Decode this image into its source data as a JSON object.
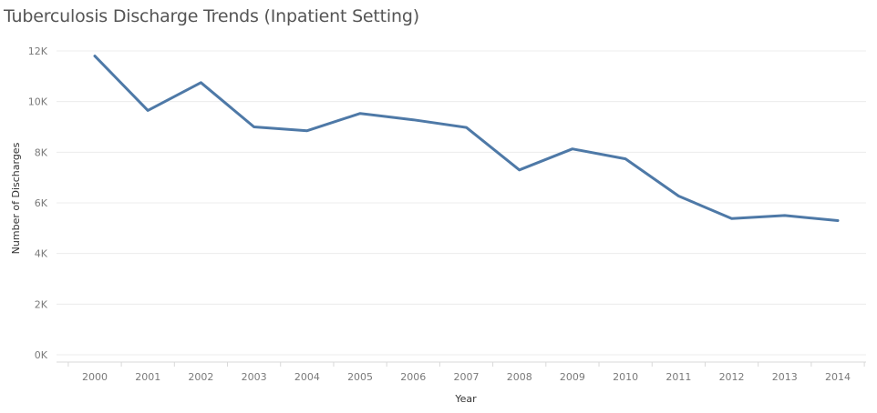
{
  "chart_data": {
    "type": "line",
    "title": "Tuberculosis Discharge Trends (Inpatient Setting)",
    "xlabel": "Year",
    "ylabel": "Number of Discharges",
    "categories": [
      "2000",
      "2001",
      "2002",
      "2003",
      "2004",
      "2005",
      "2006",
      "2007",
      "2008",
      "2009",
      "2010",
      "2011",
      "2012",
      "2013",
      "2014"
    ],
    "series": [
      {
        "values": [
          11800,
          9650,
          10750,
          9000,
          8850,
          9530,
          9280,
          8980,
          7300,
          8130,
          7740,
          6270,
          5380,
          5500,
          5300
        ]
      }
    ],
    "yticks": [
      0,
      2000,
      4000,
      6000,
      8000,
      10000,
      12000
    ],
    "ytick_labels": [
      "0K",
      "2K",
      "4K",
      "6K",
      "8K",
      "10K",
      "12K"
    ],
    "ylim": [
      0,
      12000
    ],
    "grid": true,
    "legend": "none",
    "colors": {
      "line": "#4e79a7",
      "grid": "#ececec",
      "tick_text": "#7a7a7a",
      "title_text": "#555555"
    }
  }
}
